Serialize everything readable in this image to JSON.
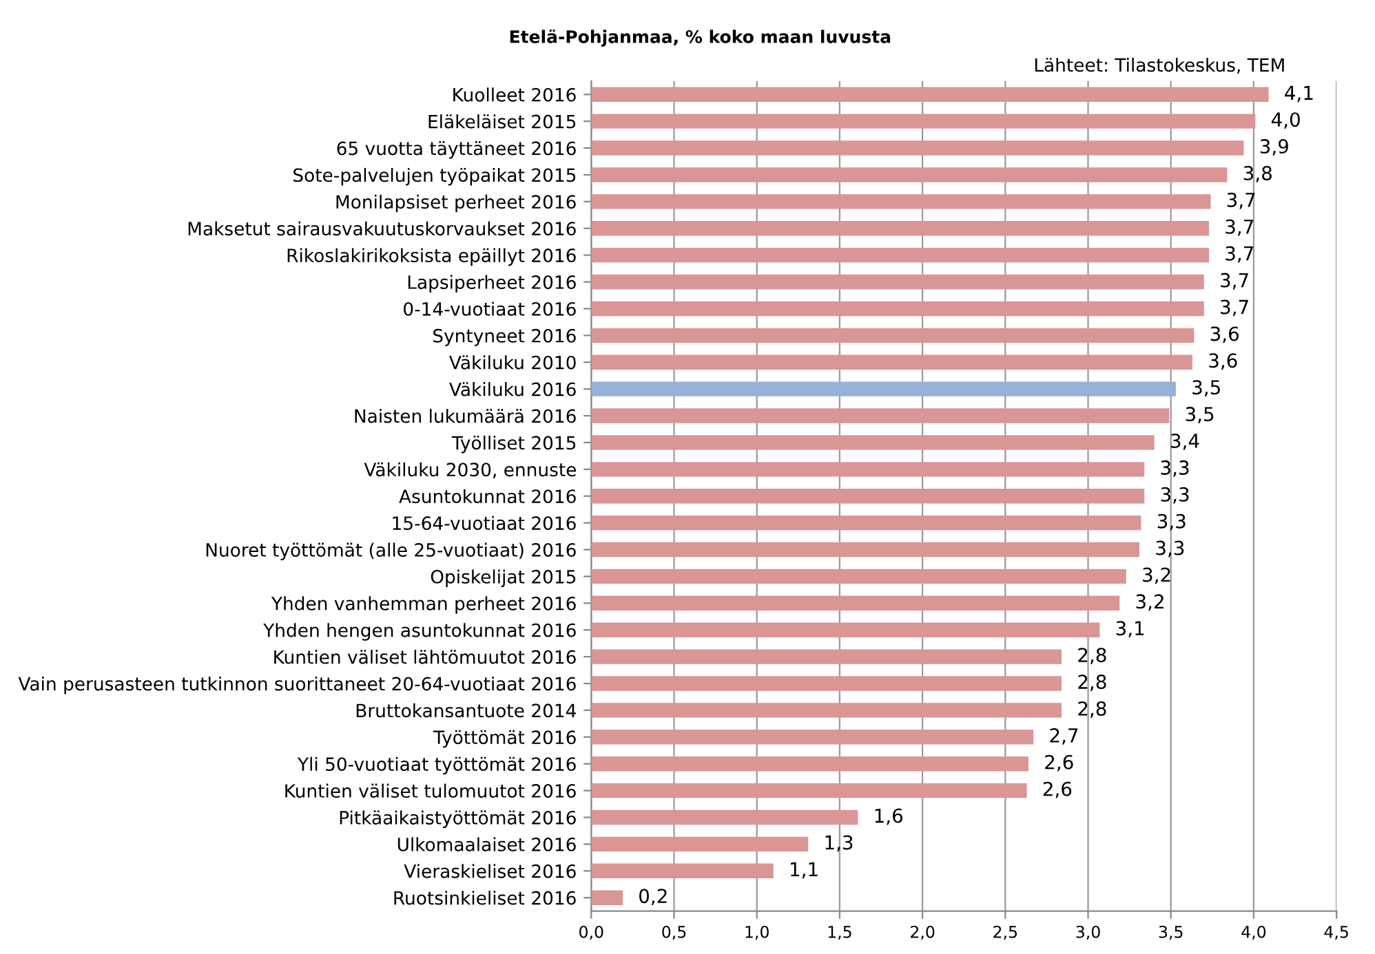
{
  "chart_data": {
    "type": "bar",
    "orientation": "horizontal",
    "title": "Etelä-Pohjanmaa, % koko maan luvusta",
    "annotations": [
      "Lähteet: Tilastokeskus, TEM"
    ],
    "categories": [
      "Kuolleet 2016",
      "Eläkeläiset 2015",
      "65 vuotta täyttäneet 2016",
      "Sote-palvelujen työpaikat 2015",
      "Monilapsiset perheet 2016",
      "Maksetut sairausvakuutuskorvaukset 2016",
      "Rikoslakirikoksista epäillyt 2016",
      "Lapsiperheet 2016",
      "0-14-vuotiaat 2016",
      "Syntyneet 2016",
      "Väkiluku 2010",
      "Väkiluku 2016",
      "Naisten lukumäärä 2016",
      "Työlliset 2015",
      "Väkiluku 2030, ennuste",
      "Asuntokunnat 2016",
      "15-64-vuotiaat 2016",
      "Nuoret työttömät (alle 25-vuotiaat) 2016",
      "Opiskelijat 2015",
      "Yhden vanhemman perheet 2016",
      "Yhden hengen asuntokunnat 2016",
      "Kuntien väliset lähtömuutot 2016",
      "Vain perusasteen tutkinnon suorittaneet 20-64-vuotiaat 2016",
      "Bruttokansantuote 2014",
      "Työttömät 2016",
      "Yli 50-vuotiaat työttömät 2016",
      "Kuntien väliset tulomuutot 2016",
      "Pitkäaikaistyöttömät 2016",
      "Ulkomaalaiset 2016",
      "Vieraskieliset 2016",
      "Ruotsinkieliset 2016"
    ],
    "values": [
      4.09,
      4.01,
      3.94,
      3.84,
      3.74,
      3.73,
      3.73,
      3.7,
      3.7,
      3.64,
      3.63,
      3.53,
      3.49,
      3.4,
      3.34,
      3.34,
      3.32,
      3.31,
      3.23,
      3.19,
      3.07,
      2.84,
      2.84,
      2.84,
      2.67,
      2.64,
      2.63,
      1.61,
      1.31,
      1.1,
      0.19
    ],
    "colors": [
      "#d99694",
      "#d99694",
      "#d99694",
      "#d99694",
      "#d99694",
      "#d99694",
      "#d99694",
      "#d99694",
      "#d99694",
      "#d99694",
      "#d99694",
      "#95b3d7",
      "#d99694",
      "#d99694",
      "#d99694",
      "#d99694",
      "#d99694",
      "#d99694",
      "#d99694",
      "#d99694",
      "#d99694",
      "#d99694",
      "#d99694",
      "#d99694",
      "#d99694",
      "#d99694",
      "#d99694",
      "#d99694",
      "#d99694",
      "#d99694",
      "#d99694"
    ],
    "value_labels": [
      "4,1",
      "4,0",
      "3,9",
      "3,8",
      "3,7",
      "3,7",
      "3,7",
      "3,7",
      "3,7",
      "3,6",
      "3,6",
      "3,5",
      "3,5",
      "3,4",
      "3,3",
      "3,3",
      "3,3",
      "3,3",
      "3,2",
      "3,2",
      "3,1",
      "2,8",
      "2,8",
      "2,8",
      "2,7",
      "2,6",
      "2,6",
      "1,6",
      "1,3",
      "1,1",
      "0,2"
    ],
    "xlim": [
      0,
      4.5
    ],
    "xticks": [
      {
        "value": 0,
        "label": "0,0"
      },
      {
        "value": 0.5,
        "label": "0,5"
      },
      {
        "value": 1,
        "label": "1,0"
      },
      {
        "value": 1.5,
        "label": "1,5"
      },
      {
        "value": 2,
        "label": "2,0"
      },
      {
        "value": 2.5,
        "label": "2,5"
      },
      {
        "value": 3,
        "label": "3,0"
      },
      {
        "value": 3.5,
        "label": "3,5"
      },
      {
        "value": 4,
        "label": "4,0"
      },
      {
        "value": 4.5,
        "label": "4,5"
      }
    ],
    "grid": "x"
  }
}
